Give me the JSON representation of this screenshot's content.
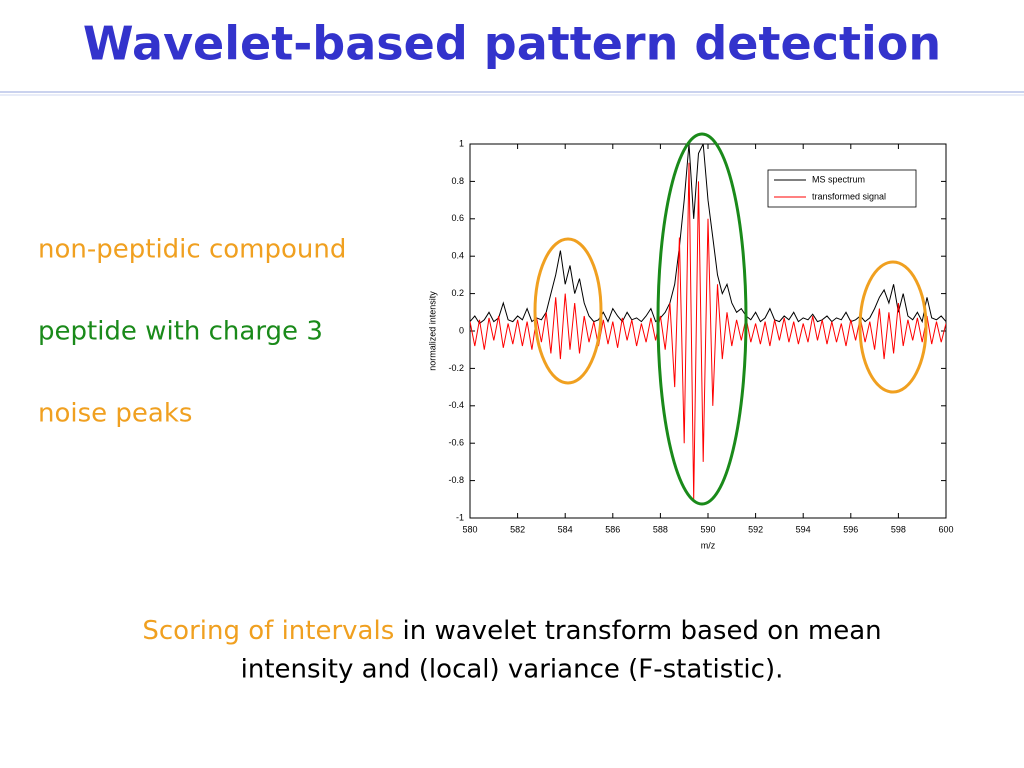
{
  "title": "Wavelet-based pattern detection",
  "labels": [
    {
      "text": "non-peptidic compound",
      "color": "#f0a020"
    },
    {
      "text": "peptide with charge 3",
      "color": "#1a8a1a"
    },
    {
      "text": "noise peaks",
      "color": "#f0a020"
    }
  ],
  "caption": {
    "highlight": "Scoring of intervals",
    "line1": "in wavelet transform based on mean",
    "line2": "intensity and (local) variance (F-statistic)."
  },
  "chart_data": {
    "type": "line",
    "xlabel": "m/z",
    "ylabel": "normalized intensity",
    "xlim": [
      580,
      600
    ],
    "ylim": [
      -1,
      1
    ],
    "xticks": [
      580,
      582,
      584,
      586,
      588,
      590,
      592,
      594,
      596,
      598,
      600
    ],
    "yticks": [
      -1,
      -0.8,
      -0.6,
      -0.4,
      -0.2,
      0,
      0.2,
      0.4,
      0.6,
      0.8,
      1
    ],
    "legend": "upper right",
    "x": [
      580,
      580.2,
      580.4,
      580.6,
      580.8,
      581,
      581.2,
      581.4,
      581.6,
      581.8,
      582,
      582.2,
      582.4,
      582.6,
      582.8,
      583,
      583.2,
      583.4,
      583.6,
      583.8,
      584,
      584.2,
      584.4,
      584.6,
      584.8,
      585,
      585.2,
      585.4,
      585.6,
      585.8,
      586,
      586.2,
      586.4,
      586.6,
      586.8,
      587,
      587.2,
      587.4,
      587.6,
      587.8,
      588,
      588.2,
      588.4,
      588.6,
      588.8,
      589,
      589.2,
      589.4,
      589.6,
      589.8,
      590,
      590.2,
      590.4,
      590.6,
      590.8,
      591,
      591.2,
      591.4,
      591.6,
      591.8,
      592,
      592.2,
      592.4,
      592.6,
      592.8,
      593,
      593.2,
      593.4,
      593.6,
      593.8,
      594,
      594.2,
      594.4,
      594.6,
      594.8,
      595,
      595.2,
      595.4,
      595.6,
      595.8,
      596,
      596.2,
      596.4,
      596.6,
      596.8,
      597,
      597.2,
      597.4,
      597.6,
      597.8,
      598,
      598.2,
      598.4,
      598.6,
      598.8,
      599,
      599.2,
      599.4,
      599.6,
      599.8,
      600
    ],
    "series": [
      {
        "name": "MS spectrum",
        "color": "#000000",
        "values": [
          0.05,
          0.08,
          0.04,
          0.06,
          0.1,
          0.05,
          0.07,
          0.15,
          0.06,
          0.05,
          0.08,
          0.06,
          0.12,
          0.05,
          0.07,
          0.06,
          0.1,
          0.2,
          0.3,
          0.43,
          0.25,
          0.35,
          0.2,
          0.28,
          0.15,
          0.08,
          0.05,
          0.06,
          0.1,
          0.05,
          0.12,
          0.08,
          0.05,
          0.1,
          0.06,
          0.07,
          0.05,
          0.08,
          0.12,
          0.05,
          0.07,
          0.1,
          0.15,
          0.25,
          0.45,
          0.7,
          1,
          0.6,
          0.95,
          1,
          0.7,
          0.5,
          0.3,
          0.2,
          0.25,
          0.15,
          0.1,
          0.12,
          0.08,
          0.06,
          0.1,
          0.05,
          0.07,
          0.12,
          0.06,
          0.05,
          0.08,
          0.06,
          0.1,
          0.05,
          0.07,
          0.06,
          0.09,
          0.05,
          0.06,
          0.08,
          0.05,
          0.07,
          0.06,
          0.1,
          0.05,
          0.06,
          0.08,
          0.05,
          0.07,
          0.12,
          0.18,
          0.22,
          0.15,
          0.25,
          0.1,
          0.2,
          0.08,
          0.06,
          0.1,
          0.05,
          0.18,
          0.07,
          0.06,
          0.08,
          0.05
        ]
      },
      {
        "name": "transformed signal",
        "color": "#ff0000",
        "values": [
          0.05,
          -0.08,
          0.06,
          -0.1,
          0.07,
          -0.05,
          0.08,
          -0.09,
          0.04,
          -0.07,
          0.06,
          -0.08,
          0.05,
          -0.1,
          0.07,
          -0.06,
          0.1,
          -0.12,
          0.18,
          -0.15,
          0.2,
          -0.1,
          0.15,
          -0.12,
          0.08,
          -0.06,
          0.05,
          -0.08,
          0.06,
          -0.07,
          0.05,
          -0.09,
          0.07,
          -0.05,
          0.06,
          -0.08,
          0.04,
          -0.06,
          0.07,
          -0.05,
          0.08,
          -0.1,
          0.15,
          -0.3,
          0.5,
          -0.6,
          0.9,
          -0.9,
          0.8,
          -0.7,
          0.6,
          -0.4,
          0.25,
          -0.15,
          0.1,
          -0.08,
          0.06,
          -0.05,
          0.07,
          -0.06,
          0.04,
          -0.07,
          0.05,
          -0.08,
          0.06,
          -0.05,
          0.07,
          -0.06,
          0.05,
          -0.07,
          0.04,
          -0.06,
          0.08,
          -0.05,
          0.06,
          -0.07,
          0.05,
          -0.06,
          0.04,
          -0.08,
          0.06,
          -0.05,
          0.07,
          -0.06,
          0.05,
          -0.1,
          0.12,
          -0.15,
          0.1,
          -0.12,
          0.15,
          -0.08,
          0.06,
          -0.05,
          0.07,
          -0.06,
          0.08,
          -0.07,
          0.05,
          -0.06,
          0.04
        ]
      }
    ]
  }
}
